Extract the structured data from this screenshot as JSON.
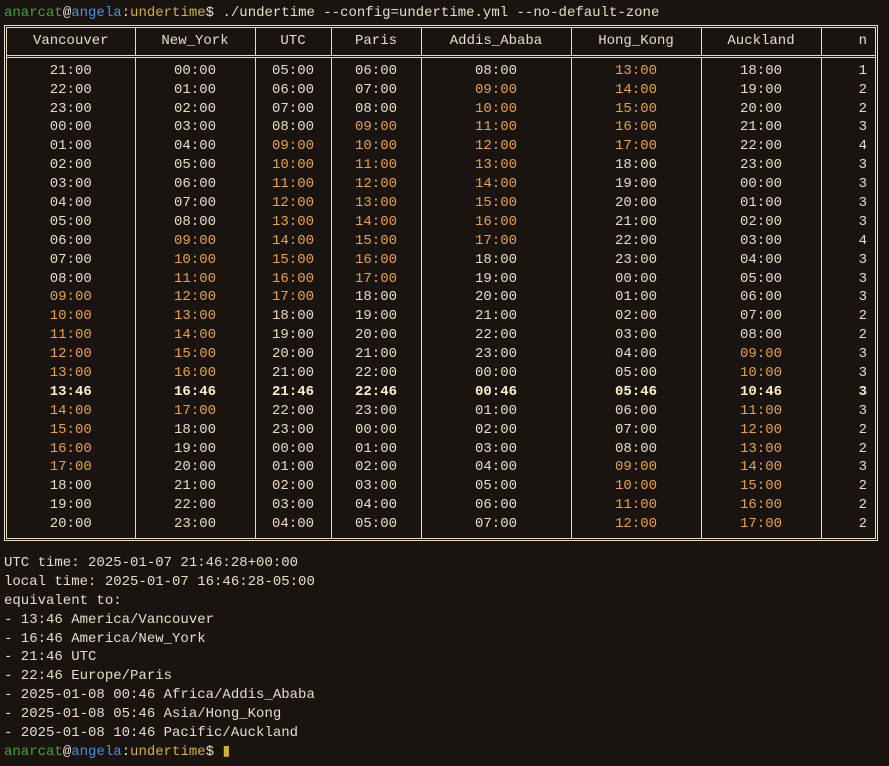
{
  "prompt": {
    "user": "anarcat",
    "at": "@",
    "host": "angela",
    "colon": ":",
    "path": "undertime",
    "dollar": "$ ",
    "command": "./undertime --config=undertime.yml --no-default-zone",
    "cursor": "▮"
  },
  "headers": [
    "Vancouver",
    "New_York",
    "UTC",
    "Paris",
    "Addis_Ababa",
    "Hong_Kong",
    "Auckland",
    "n"
  ],
  "col_classes": [
    "col-van",
    "col-ny",
    "col-utc",
    "col-par",
    "col-aa",
    "col-hk",
    "col-ak",
    "col-n"
  ],
  "rows": [
    {
      "c": [
        {
          "t": "21:00",
          "s": "n"
        },
        {
          "t": "00:00",
          "s": "n"
        },
        {
          "t": "05:00",
          "s": "n"
        },
        {
          "t": "06:00",
          "s": "n"
        },
        {
          "t": "08:00",
          "s": "n"
        },
        {
          "t": "13:00",
          "s": "o"
        },
        {
          "t": "18:00",
          "s": "n"
        },
        {
          "t": "1",
          "s": "n"
        }
      ]
    },
    {
      "c": [
        {
          "t": "22:00",
          "s": "n"
        },
        {
          "t": "01:00",
          "s": "n"
        },
        {
          "t": "06:00",
          "s": "n"
        },
        {
          "t": "07:00",
          "s": "n"
        },
        {
          "t": "09:00",
          "s": "o"
        },
        {
          "t": "14:00",
          "s": "o"
        },
        {
          "t": "19:00",
          "s": "n"
        },
        {
          "t": "2",
          "s": "n"
        }
      ]
    },
    {
      "c": [
        {
          "t": "23:00",
          "s": "n"
        },
        {
          "t": "02:00",
          "s": "n"
        },
        {
          "t": "07:00",
          "s": "n"
        },
        {
          "t": "08:00",
          "s": "n"
        },
        {
          "t": "10:00",
          "s": "o"
        },
        {
          "t": "15:00",
          "s": "o"
        },
        {
          "t": "20:00",
          "s": "n"
        },
        {
          "t": "2",
          "s": "n"
        }
      ]
    },
    {
      "c": [
        {
          "t": "00:00",
          "s": "n"
        },
        {
          "t": "03:00",
          "s": "n"
        },
        {
          "t": "08:00",
          "s": "n"
        },
        {
          "t": "09:00",
          "s": "o"
        },
        {
          "t": "11:00",
          "s": "o"
        },
        {
          "t": "16:00",
          "s": "o"
        },
        {
          "t": "21:00",
          "s": "n"
        },
        {
          "t": "3",
          "s": "n"
        }
      ]
    },
    {
      "c": [
        {
          "t": "01:00",
          "s": "n"
        },
        {
          "t": "04:00",
          "s": "n"
        },
        {
          "t": "09:00",
          "s": "o"
        },
        {
          "t": "10:00",
          "s": "o"
        },
        {
          "t": "12:00",
          "s": "o"
        },
        {
          "t": "17:00",
          "s": "o"
        },
        {
          "t": "22:00",
          "s": "n"
        },
        {
          "t": "4",
          "s": "n"
        }
      ]
    },
    {
      "c": [
        {
          "t": "02:00",
          "s": "n"
        },
        {
          "t": "05:00",
          "s": "n"
        },
        {
          "t": "10:00",
          "s": "o"
        },
        {
          "t": "11:00",
          "s": "o"
        },
        {
          "t": "13:00",
          "s": "o"
        },
        {
          "t": "18:00",
          "s": "n"
        },
        {
          "t": "23:00",
          "s": "n"
        },
        {
          "t": "3",
          "s": "n"
        }
      ]
    },
    {
      "c": [
        {
          "t": "03:00",
          "s": "n"
        },
        {
          "t": "06:00",
          "s": "n"
        },
        {
          "t": "11:00",
          "s": "o"
        },
        {
          "t": "12:00",
          "s": "o"
        },
        {
          "t": "14:00",
          "s": "o"
        },
        {
          "t": "19:00",
          "s": "n"
        },
        {
          "t": "00:00",
          "s": "n"
        },
        {
          "t": "3",
          "s": "n"
        }
      ]
    },
    {
      "c": [
        {
          "t": "04:00",
          "s": "n"
        },
        {
          "t": "07:00",
          "s": "n"
        },
        {
          "t": "12:00",
          "s": "o"
        },
        {
          "t": "13:00",
          "s": "o"
        },
        {
          "t": "15:00",
          "s": "o"
        },
        {
          "t": "20:00",
          "s": "n"
        },
        {
          "t": "01:00",
          "s": "n"
        },
        {
          "t": "3",
          "s": "n"
        }
      ]
    },
    {
      "c": [
        {
          "t": "05:00",
          "s": "n"
        },
        {
          "t": "08:00",
          "s": "n"
        },
        {
          "t": "13:00",
          "s": "o"
        },
        {
          "t": "14:00",
          "s": "o"
        },
        {
          "t": "16:00",
          "s": "o"
        },
        {
          "t": "21:00",
          "s": "n"
        },
        {
          "t": "02:00",
          "s": "n"
        },
        {
          "t": "3",
          "s": "n"
        }
      ]
    },
    {
      "c": [
        {
          "t": "06:00",
          "s": "n"
        },
        {
          "t": "09:00",
          "s": "o"
        },
        {
          "t": "14:00",
          "s": "o"
        },
        {
          "t": "15:00",
          "s": "o"
        },
        {
          "t": "17:00",
          "s": "o"
        },
        {
          "t": "22:00",
          "s": "n"
        },
        {
          "t": "03:00",
          "s": "n"
        },
        {
          "t": "4",
          "s": "n"
        }
      ]
    },
    {
      "c": [
        {
          "t": "07:00",
          "s": "n"
        },
        {
          "t": "10:00",
          "s": "o"
        },
        {
          "t": "15:00",
          "s": "o"
        },
        {
          "t": "16:00",
          "s": "o"
        },
        {
          "t": "18:00",
          "s": "n"
        },
        {
          "t": "23:00",
          "s": "n"
        },
        {
          "t": "04:00",
          "s": "n"
        },
        {
          "t": "3",
          "s": "n"
        }
      ]
    },
    {
      "c": [
        {
          "t": "08:00",
          "s": "n"
        },
        {
          "t": "11:00",
          "s": "o"
        },
        {
          "t": "16:00",
          "s": "o"
        },
        {
          "t": "17:00",
          "s": "o"
        },
        {
          "t": "19:00",
          "s": "n"
        },
        {
          "t": "00:00",
          "s": "n"
        },
        {
          "t": "05:00",
          "s": "n"
        },
        {
          "t": "3",
          "s": "n"
        }
      ]
    },
    {
      "c": [
        {
          "t": "09:00",
          "s": "o"
        },
        {
          "t": "12:00",
          "s": "o"
        },
        {
          "t": "17:00",
          "s": "o"
        },
        {
          "t": "18:00",
          "s": "n"
        },
        {
          "t": "20:00",
          "s": "n"
        },
        {
          "t": "01:00",
          "s": "n"
        },
        {
          "t": "06:00",
          "s": "n"
        },
        {
          "t": "3",
          "s": "n"
        }
      ]
    },
    {
      "c": [
        {
          "t": "10:00",
          "s": "o"
        },
        {
          "t": "13:00",
          "s": "o"
        },
        {
          "t": "18:00",
          "s": "n"
        },
        {
          "t": "19:00",
          "s": "n"
        },
        {
          "t": "21:00",
          "s": "n"
        },
        {
          "t": "02:00",
          "s": "n"
        },
        {
          "t": "07:00",
          "s": "n"
        },
        {
          "t": "2",
          "s": "n"
        }
      ]
    },
    {
      "c": [
        {
          "t": "11:00",
          "s": "o"
        },
        {
          "t": "14:00",
          "s": "o"
        },
        {
          "t": "19:00",
          "s": "n"
        },
        {
          "t": "20:00",
          "s": "n"
        },
        {
          "t": "22:00",
          "s": "n"
        },
        {
          "t": "03:00",
          "s": "n"
        },
        {
          "t": "08:00",
          "s": "n"
        },
        {
          "t": "2",
          "s": "n"
        }
      ]
    },
    {
      "c": [
        {
          "t": "12:00",
          "s": "o"
        },
        {
          "t": "15:00",
          "s": "o"
        },
        {
          "t": "20:00",
          "s": "n"
        },
        {
          "t": "21:00",
          "s": "n"
        },
        {
          "t": "23:00",
          "s": "n"
        },
        {
          "t": "04:00",
          "s": "n"
        },
        {
          "t": "09:00",
          "s": "o"
        },
        {
          "t": "3",
          "s": "n"
        }
      ]
    },
    {
      "c": [
        {
          "t": "13:00",
          "s": "o"
        },
        {
          "t": "16:00",
          "s": "o"
        },
        {
          "t": "21:00",
          "s": "n"
        },
        {
          "t": "22:00",
          "s": "n"
        },
        {
          "t": "00:00",
          "s": "n"
        },
        {
          "t": "05:00",
          "s": "n"
        },
        {
          "t": "10:00",
          "s": "o"
        },
        {
          "t": "3",
          "s": "n"
        }
      ]
    },
    {
      "c": [
        {
          "t": "13:46",
          "s": "b"
        },
        {
          "t": "16:46",
          "s": "b"
        },
        {
          "t": "21:46",
          "s": "b"
        },
        {
          "t": "22:46",
          "s": "b"
        },
        {
          "t": "00:46",
          "s": "b"
        },
        {
          "t": "05:46",
          "s": "b"
        },
        {
          "t": "10:46",
          "s": "b"
        },
        {
          "t": "3",
          "s": "b"
        }
      ]
    },
    {
      "c": [
        {
          "t": "14:00",
          "s": "o"
        },
        {
          "t": "17:00",
          "s": "o"
        },
        {
          "t": "22:00",
          "s": "n"
        },
        {
          "t": "23:00",
          "s": "n"
        },
        {
          "t": "01:00",
          "s": "n"
        },
        {
          "t": "06:00",
          "s": "n"
        },
        {
          "t": "11:00",
          "s": "o"
        },
        {
          "t": "3",
          "s": "n"
        }
      ]
    },
    {
      "c": [
        {
          "t": "15:00",
          "s": "o"
        },
        {
          "t": "18:00",
          "s": "n"
        },
        {
          "t": "23:00",
          "s": "n"
        },
        {
          "t": "00:00",
          "s": "n"
        },
        {
          "t": "02:00",
          "s": "n"
        },
        {
          "t": "07:00",
          "s": "n"
        },
        {
          "t": "12:00",
          "s": "o"
        },
        {
          "t": "2",
          "s": "n"
        }
      ]
    },
    {
      "c": [
        {
          "t": "16:00",
          "s": "o"
        },
        {
          "t": "19:00",
          "s": "n"
        },
        {
          "t": "00:00",
          "s": "n"
        },
        {
          "t": "01:00",
          "s": "n"
        },
        {
          "t": "03:00",
          "s": "n"
        },
        {
          "t": "08:00",
          "s": "n"
        },
        {
          "t": "13:00",
          "s": "o"
        },
        {
          "t": "2",
          "s": "n"
        }
      ]
    },
    {
      "c": [
        {
          "t": "17:00",
          "s": "o"
        },
        {
          "t": "20:00",
          "s": "n"
        },
        {
          "t": "01:00",
          "s": "n"
        },
        {
          "t": "02:00",
          "s": "n"
        },
        {
          "t": "04:00",
          "s": "n"
        },
        {
          "t": "09:00",
          "s": "o"
        },
        {
          "t": "14:00",
          "s": "o"
        },
        {
          "t": "3",
          "s": "n"
        }
      ]
    },
    {
      "c": [
        {
          "t": "18:00",
          "s": "n"
        },
        {
          "t": "21:00",
          "s": "n"
        },
        {
          "t": "02:00",
          "s": "n"
        },
        {
          "t": "03:00",
          "s": "n"
        },
        {
          "t": "05:00",
          "s": "n"
        },
        {
          "t": "10:00",
          "s": "o"
        },
        {
          "t": "15:00",
          "s": "o"
        },
        {
          "t": "2",
          "s": "n"
        }
      ]
    },
    {
      "c": [
        {
          "t": "19:00",
          "s": "n"
        },
        {
          "t": "22:00",
          "s": "n"
        },
        {
          "t": "03:00",
          "s": "n"
        },
        {
          "t": "04:00",
          "s": "n"
        },
        {
          "t": "06:00",
          "s": "n"
        },
        {
          "t": "11:00",
          "s": "o"
        },
        {
          "t": "16:00",
          "s": "o"
        },
        {
          "t": "2",
          "s": "n"
        }
      ]
    },
    {
      "c": [
        {
          "t": "20:00",
          "s": "n"
        },
        {
          "t": "23:00",
          "s": "n"
        },
        {
          "t": "04:00",
          "s": "n"
        },
        {
          "t": "05:00",
          "s": "n"
        },
        {
          "t": "07:00",
          "s": "n"
        },
        {
          "t": "12:00",
          "s": "o"
        },
        {
          "t": "17:00",
          "s": "o"
        },
        {
          "t": "2",
          "s": "n"
        }
      ]
    }
  ],
  "footer": [
    "UTC time: 2025-01-07 21:46:28+00:00",
    "local time: 2025-01-07 16:46:28-05:00",
    "equivalent to:",
    "- 13:46 America/Vancouver",
    "- 16:46 America/New_York",
    "- 21:46 UTC",
    "- 22:46 Europe/Paris",
    "- 2025-01-08 00:46 Africa/Addis_Ababa",
    "- 2025-01-08 05:46 Asia/Hong_Kong",
    "- 2025-01-08 10:46 Pacific/Auckland"
  ]
}
